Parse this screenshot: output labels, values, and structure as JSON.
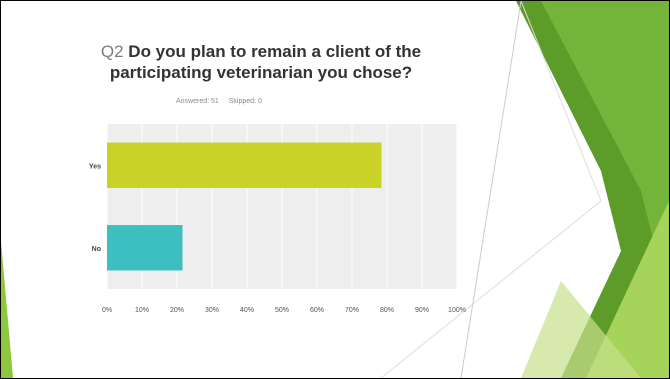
{
  "slide": {
    "question_number": "Q2",
    "question_text": "Do you plan to remain a client of the participating veterinarian you chose?",
    "answered": "Answered: 51",
    "skipped": "Skipped: 0"
  },
  "colors": {
    "bar_yes": "#c9d226",
    "bar_no": "#3cbfbf",
    "plot_bg": "#eeeeee",
    "grid": "#ffffff",
    "accent_green": "#8dc63f"
  },
  "chart_data": {
    "type": "bar",
    "orientation": "horizontal",
    "categories": [
      "Yes",
      "No"
    ],
    "values": [
      78.43,
      21.57
    ],
    "xlim": [
      0,
      100
    ],
    "x_ticks": [
      "0%",
      "10%",
      "20%",
      "30%",
      "40%",
      "50%",
      "60%",
      "70%",
      "80%",
      "90%",
      "100%"
    ],
    "grid": true,
    "title": "",
    "xlabel": "",
    "ylabel": ""
  }
}
